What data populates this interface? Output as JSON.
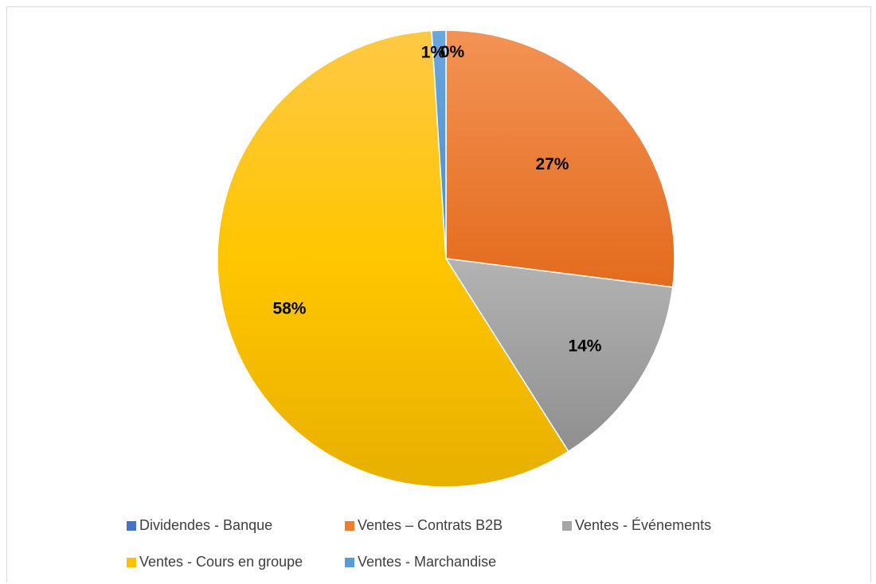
{
  "chart_data": {
    "type": "pie",
    "categories": [
      "Dividendes - Banque",
      "Ventes – Contrats B2B",
      "Ventes - Événements",
      "Ventes - Cours en groupe",
      "Ventes - Marchandise"
    ],
    "values": [
      0,
      27,
      14,
      58,
      1
    ],
    "data_labels": [
      "0%",
      "27%",
      "14%",
      "58%",
      "1%"
    ],
    "colors": [
      "#4472c4",
      "#ed7d31",
      "#a5a5a5",
      "#ffc000",
      "#5b9bd5"
    ],
    "legend_position": "bottom"
  }
}
